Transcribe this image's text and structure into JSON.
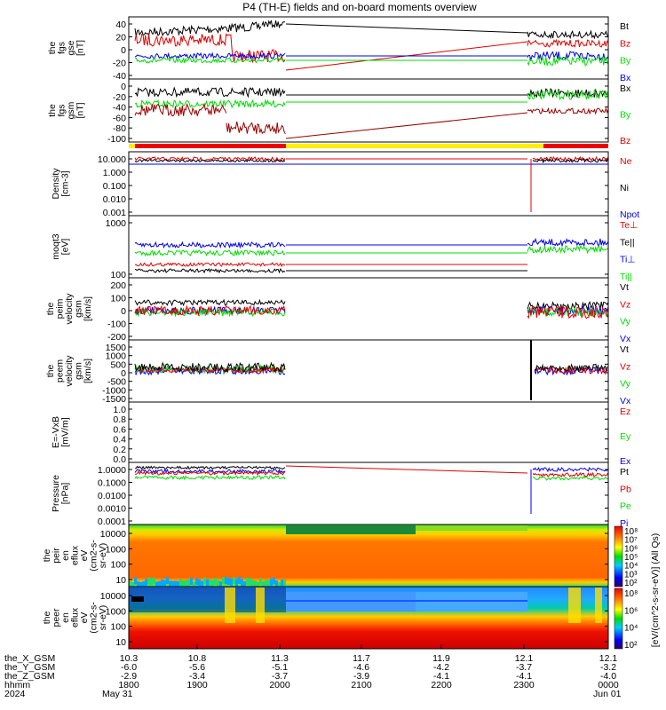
{
  "title": "P4 (TH-E) fields and on-board moments overview",
  "colors": {
    "black": "#000000",
    "red": "#e00000",
    "green": "#00dd00",
    "blue": "#0000ee",
    "yellow": "#ffee00",
    "bar_red": "#ee0000"
  },
  "chart_data": {
    "type": "line",
    "x_ticks": {
      "the_X_GSM": [
        "10.3",
        "10.8",
        "11.3",
        "11.7",
        "11.9",
        "12.1",
        "12.1"
      ],
      "the_Y_GSM": [
        "-6.0",
        "-5.6",
        "-5.1",
        "-4.6",
        "-4.2",
        "-3.7",
        "-3.2"
      ],
      "the_Z_GSM": [
        "-2.9",
        "-3.4",
        "-3.7",
        "-3.9",
        "-4.1",
        "-4.1",
        "-4.0"
      ],
      "hhmm": [
        "1800",
        "1900",
        "2000",
        "2100",
        "2200",
        "2300",
        "0000"
      ],
      "row_labels": [
        "the_X_GSM",
        "the_Y_GSM",
        "the_Z_GSM",
        "hhmm",
        "2024"
      ],
      "dates": [
        "May 31",
        "Jun 01"
      ]
    },
    "data_gap": {
      "start_hhmm": "2001",
      "end_hhmm": "2300"
    },
    "panels": [
      {
        "ylabel": [
          "the",
          "fgs",
          "gse",
          "[nT]"
        ],
        "ylim": [
          -50,
          55
        ],
        "ticks": [
          "40",
          "20",
          "0",
          "-20",
          "-40"
        ],
        "series": [
          {
            "name": "Bt",
            "color": "#000000"
          },
          {
            "name": "Bz",
            "color": "#e00000"
          },
          {
            "name": "By",
            "color": "#00dd00"
          },
          {
            "name": "Bx",
            "color": "#0000ee"
          }
        ]
      },
      {
        "ylabel": [
          "the",
          "fgs",
          "gsm",
          "[nT]"
        ],
        "ylim": [
          -110,
          10
        ],
        "ticks": [
          "0",
          "-20",
          "-40",
          "-60",
          "-80",
          "-100"
        ],
        "series": [
          {
            "name": "Bx",
            "color": "#000000"
          },
          {
            "name": "By",
            "color": "#00dd00"
          },
          {
            "name": "Bz",
            "color": "#e00000"
          }
        ]
      },
      {
        "ylabel": [
          "Density",
          "[cm-3]"
        ],
        "scale": "log",
        "ticks": [
          "10.000",
          "1.000",
          "0.100",
          "0.010",
          "0.001"
        ],
        "series": [
          {
            "name": "Ne",
            "color": "#e00000"
          },
          {
            "name": "Ni",
            "color": "#000000"
          },
          {
            "name": "Npot",
            "color": "#0000ee"
          }
        ]
      },
      {
        "ylabel": [
          "moqt3",
          "[eV]"
        ],
        "scale": "log",
        "ticks": [
          "1000",
          "100"
        ],
        "series": [
          {
            "name": "Te⊥",
            "color": "#e00000"
          },
          {
            "name": "Te||",
            "color": "#000000"
          },
          {
            "name": "Ti⊥",
            "color": "#0000ee"
          },
          {
            "name": "Ti||",
            "color": "#00dd00"
          }
        ]
      },
      {
        "ylabel": [
          "the",
          "peim",
          "velocity",
          "gsm",
          "[km/s]"
        ],
        "ylim": [
          -200,
          250
        ],
        "ticks": [
          "200",
          "100",
          "0",
          "-100",
          "-200"
        ],
        "series": [
          {
            "name": "Vt",
            "color": "#000000"
          },
          {
            "name": "Vz",
            "color": "#e00000"
          },
          {
            "name": "Vy",
            "color": "#00dd00"
          },
          {
            "name": "Vx",
            "color": "#0000ee"
          }
        ]
      },
      {
        "ylabel": [
          "the",
          "peem",
          "velocity",
          "gsm",
          "[km/s]"
        ],
        "ylim": [
          -1500,
          1500
        ],
        "ticks": [
          "1500",
          "1000",
          "500",
          "0",
          "-500",
          "-1000",
          "-1500"
        ],
        "series": [
          {
            "name": "Vt",
            "color": "#000000"
          },
          {
            "name": "Vz",
            "color": "#e00000"
          },
          {
            "name": "Vy",
            "color": "#00dd00"
          },
          {
            "name": "Vx",
            "color": "#0000ee"
          }
        ]
      },
      {
        "ylabel": [
          "E=-VxB",
          "[mV/m]"
        ],
        "ylim": [
          0,
          1
        ],
        "ticks": [
          "1.0",
          "0.8",
          "0.6",
          "0.4",
          "0.2",
          "0.0"
        ],
        "series": [
          {
            "name": "Ez",
            "color": "#e00000"
          },
          {
            "name": "Ey",
            "color": "#00dd00"
          },
          {
            "name": "Ex",
            "color": "#0000ee"
          }
        ]
      },
      {
        "ylabel": [
          "Pressure",
          "[nPa]"
        ],
        "scale": "log",
        "ticks": [
          "1.0000",
          "0.1000",
          "0.0100",
          "0.0010",
          "0.0001"
        ],
        "series": [
          {
            "name": "Pt",
            "color": "#000000"
          },
          {
            "name": "Pb",
            "color": "#e00000"
          },
          {
            "name": "Pe",
            "color": "#00dd00"
          },
          {
            "name": "Pi",
            "color": "#0000ee"
          }
        ]
      },
      {
        "ylabel": [
          "the",
          "peir",
          "en",
          "eflux",
          "eV",
          "(cm2-s-",
          "sr-eV)"
        ],
        "type": "heatmap",
        "ticks": [
          "10000",
          "1000",
          "100",
          "10"
        ]
      },
      {
        "ylabel": [
          "the",
          "peer",
          "en",
          "eflux",
          "eV",
          "(cm2-s-",
          "sr-eV)"
        ],
        "type": "heatmap",
        "ticks": [
          "10000",
          "1000",
          "100",
          "10"
        ]
      }
    ],
    "colorbar": {
      "label": "[eV/(cm^2-s-sr-eV)] (All Qs)",
      "top_ticks": [
        "10⁸",
        "10⁷",
        "10⁶",
        "10⁵",
        "10⁴",
        "10³",
        "10²"
      ],
      "bottom_ticks": [
        "10⁸",
        "10⁶",
        "10⁴",
        "10²"
      ]
    }
  }
}
